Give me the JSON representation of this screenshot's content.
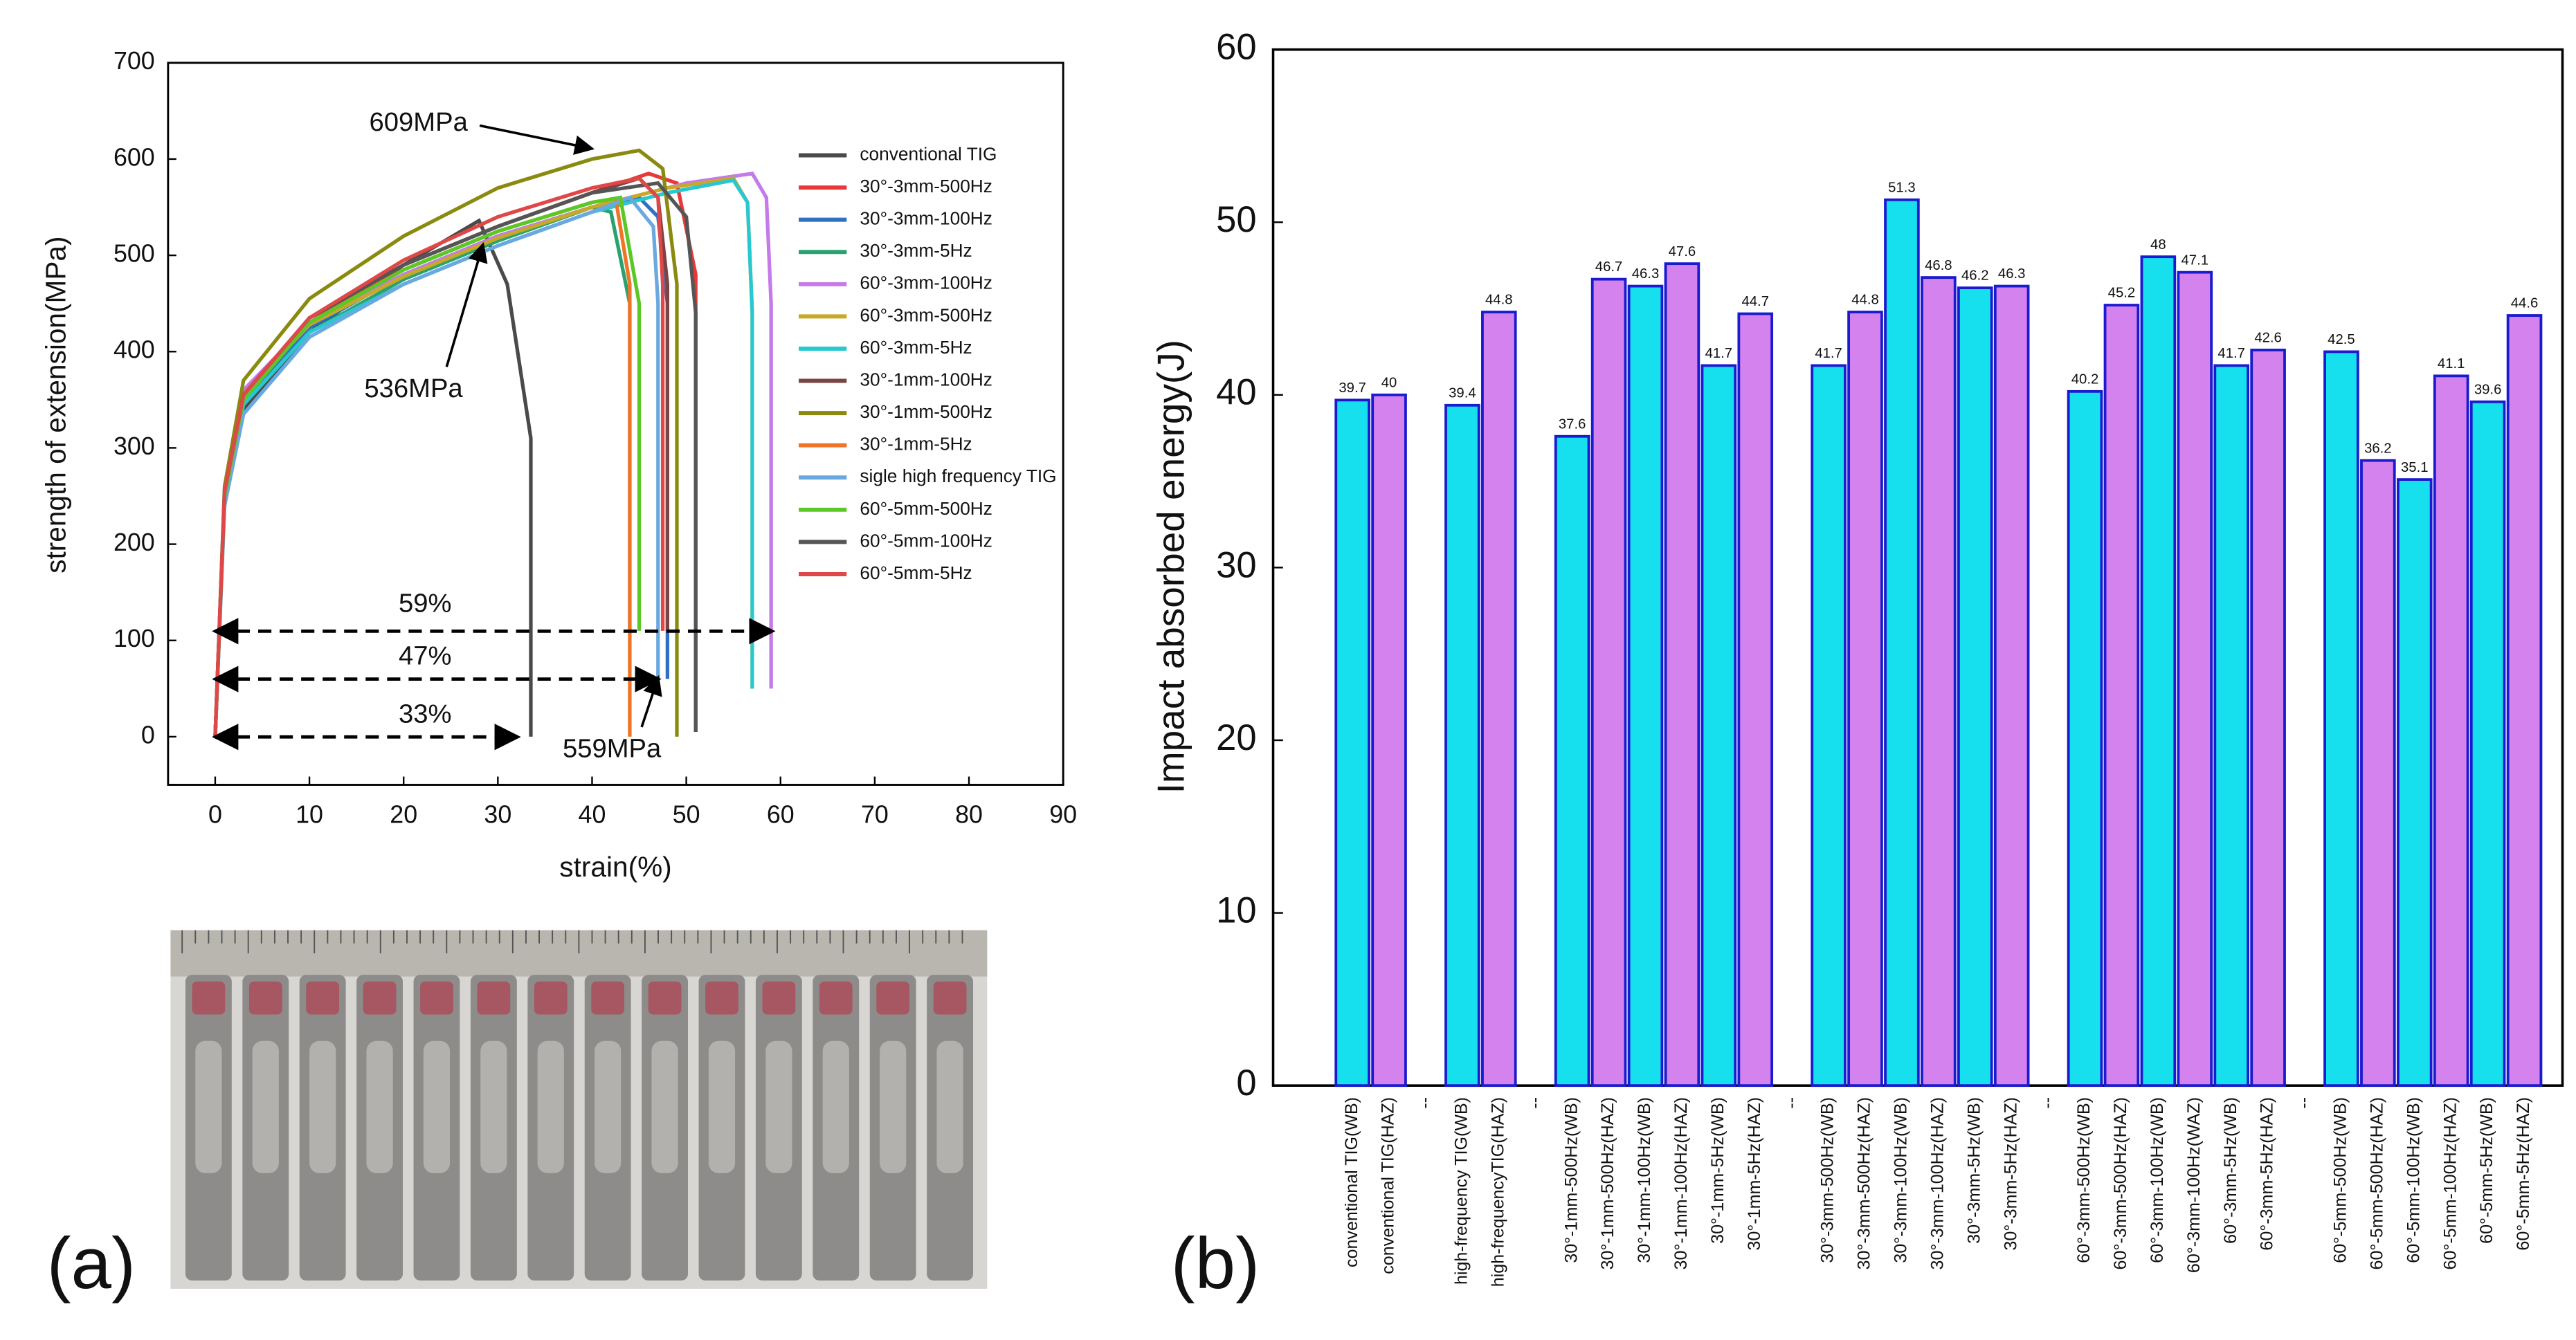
{
  "chart_data": [
    {
      "type": "line",
      "xlabel": "strain(%)",
      "ylabel": "strength of extension(MPa)",
      "xlim": [
        -5,
        90
      ],
      "xticks": [
        0,
        10,
        20,
        30,
        40,
        50,
        60,
        70,
        80,
        90
      ],
      "ylim": [
        -50,
        700
      ],
      "yticks": [
        0,
        100,
        200,
        300,
        400,
        500,
        600,
        700
      ],
      "annotations": [
        "609MPa",
        "536MPa",
        "59%",
        "47%",
        "33%",
        "559MPa"
      ],
      "series": [
        {
          "name": "conventional TIG",
          "color": "#4a4a4a",
          "x": [
            0,
            1,
            3,
            10,
            20,
            28,
            31,
            33.5,
            33.5
          ],
          "values": [
            0,
            250,
            340,
            420,
            490,
            536,
            470,
            310,
            0
          ]
        },
        {
          "name": "30°-3mm-500Hz",
          "color": "#e83838",
          "x": [
            0,
            1,
            3,
            10,
            20,
            30,
            40,
            46,
            49,
            51,
            51
          ],
          "values": [
            0,
            250,
            350,
            430,
            490,
            530,
            565,
            585,
            575,
            480,
            5
          ]
        },
        {
          "name": "30°-3mm-100Hz",
          "color": "#2f6fc4",
          "x": [
            0,
            1,
            3,
            10,
            20,
            30,
            40,
            45,
            47,
            48,
            48
          ],
          "values": [
            0,
            250,
            345,
            425,
            480,
            520,
            550,
            560,
            540,
            450,
            60
          ]
        },
        {
          "name": "30°-3mm-5Hz",
          "color": "#2aa270",
          "x": [
            0,
            1,
            3,
            10,
            20,
            30,
            40,
            42,
            44,
            44
          ],
          "values": [
            0,
            250,
            345,
            420,
            475,
            515,
            550,
            545,
            450,
            110
          ]
        },
        {
          "name": "60°-3mm-100Hz",
          "color": "#c47ae8",
          "x": [
            0,
            1,
            3,
            10,
            20,
            30,
            40,
            50,
            57,
            58.5,
            59,
            59
          ],
          "values": [
            0,
            260,
            360,
            430,
            480,
            520,
            550,
            575,
            585,
            560,
            450,
            50
          ]
        },
        {
          "name": "60°-3mm-500Hz",
          "color": "#c8a828",
          "x": [
            0,
            1,
            3,
            10,
            20,
            30,
            40,
            48,
            55,
            56.5,
            57,
            57
          ],
          "values": [
            0,
            255,
            355,
            428,
            478,
            518,
            550,
            570,
            580,
            555,
            440,
            50
          ]
        },
        {
          "name": "60°-3mm-5Hz",
          "color": "#28c8d0",
          "x": [
            0,
            1,
            3,
            10,
            20,
            30,
            40,
            48,
            55,
            56.5,
            57,
            57
          ],
          "values": [
            0,
            250,
            345,
            420,
            470,
            510,
            545,
            565,
            578,
            555,
            440,
            50
          ]
        },
        {
          "name": "30°-1mm-100Hz",
          "color": "#7a4444",
          "x": [
            0,
            1,
            3,
            10,
            20,
            30,
            40,
            45,
            47,
            48,
            48
          ],
          "values": [
            0,
            255,
            355,
            435,
            490,
            530,
            565,
            580,
            560,
            470,
            110
          ]
        },
        {
          "name": "30°-1mm-500Hz",
          "color": "#8a8a10",
          "x": [
            0,
            1,
            3,
            10,
            20,
            30,
            40,
            45,
            47.5,
            49,
            49
          ],
          "values": [
            0,
            260,
            370,
            455,
            520,
            570,
            600,
            609,
            590,
            470,
            0
          ]
        },
        {
          "name": "30°-1mm-5Hz",
          "color": "#f07428",
          "x": [
            0,
            1,
            3,
            10,
            20,
            30,
            40,
            42.5,
            44,
            44
          ],
          "values": [
            0,
            250,
            350,
            430,
            485,
            525,
            555,
            559,
            470,
            0
          ]
        },
        {
          "name": "sigle high frequency TIG",
          "color": "#6aa8e0",
          "x": [
            0,
            1,
            3,
            10,
            20,
            30,
            40,
            44,
            46.5,
            47,
            47
          ],
          "values": [
            0,
            240,
            335,
            415,
            470,
            510,
            545,
            560,
            530,
            450,
            60
          ]
        },
        {
          "name": "60°-5mm-500Hz",
          "color": "#5cc828",
          "x": [
            0,
            1,
            3,
            10,
            20,
            30,
            40,
            43,
            45,
            45
          ],
          "values": [
            0,
            250,
            350,
            430,
            485,
            525,
            555,
            560,
            450,
            110
          ]
        },
        {
          "name": "60°-5mm-100Hz",
          "color": "#555555",
          "x": [
            0,
            1,
            3,
            10,
            20,
            30,
            40,
            47,
            50,
            51,
            51
          ],
          "values": [
            0,
            255,
            355,
            435,
            490,
            530,
            565,
            575,
            540,
            440,
            5
          ]
        },
        {
          "name": "60°-5mm-5Hz",
          "color": "#e04848",
          "x": [
            0,
            1,
            3,
            10,
            20,
            30,
            40,
            45,
            47,
            47.5,
            47.5
          ],
          "values": [
            0,
            255,
            355,
            435,
            495,
            540,
            570,
            580,
            560,
            470,
            110
          ]
        }
      ]
    },
    {
      "type": "bar",
      "ylabel": "Impact absorbed energy(J)",
      "ylim": [
        0,
        60
      ],
      "yticks": [
        0,
        10,
        20,
        30,
        40,
        50,
        60
      ],
      "categories": [
        "conventional TIG(WB)",
        "conventional TIG(HAZ)",
        "--",
        "high-frequency TIG(WB)",
        "high-frequencyTIG(HAZ)",
        "--",
        "30°-1mm-500Hz(WB)",
        "30°-1mm-500Hz(HAZ)",
        "30°-1mm-100Hz(WB)",
        "30°-1mm-100Hz(HAZ)",
        "30°-1mm-5Hz(WB)",
        "30°-1mm-5Hz(HAZ)",
        "--",
        "30°-3mm-500Hz(WB)",
        "30°-3mm-500Hz(HAZ)",
        "30°-3mm-100Hz(WB)",
        "30°-3mm-100Hz(HAZ)",
        "30°-3mm-5Hz(WB)",
        "30°-3mm-5Hz(HAZ)",
        "--",
        "60°-3mm-500Hz(WB)",
        "60°-3mm-500Hz(HAZ)",
        "60°-3mm-100Hz(WB)",
        "60°-3mm-100Hz(WAZ)",
        "60°-3mm-5Hz(WB)",
        "60°-3mm-5Hz(HAZ)",
        "--",
        "60°-5mm-500Hz(WB)",
        "60°-5mm-500Hz(HAZ)",
        "60°-5mm-100Hz(WB)",
        "60°-5mm-100Hz(HAZ)",
        "60°-5mm-5Hz(WB)",
        "60°-5mm-5Hz(HAZ)"
      ],
      "values": [
        39.7,
        40,
        null,
        39.4,
        44.8,
        null,
        37.6,
        46.7,
        46.3,
        47.6,
        41.7,
        44.7,
        null,
        41.7,
        44.8,
        51.3,
        46.8,
        46.2,
        46.3,
        null,
        40.2,
        45.2,
        48,
        47.1,
        41.7,
        42.6,
        null,
        42.5,
        36.2,
        35.1,
        41.1,
        39.6,
        44.6
      ],
      "colors": [
        "#16e0ee",
        "#d483ee",
        null,
        "#16e0ee",
        "#d483ee",
        null,
        "#16e0ee",
        "#d483ee",
        "#16e0ee",
        "#d483ee",
        "#16e0ee",
        "#d483ee",
        null,
        "#16e0ee",
        "#d483ee",
        "#16e0ee",
        "#d483ee",
        "#16e0ee",
        "#d483ee",
        null,
        "#16e0ee",
        "#d483ee",
        "#16e0ee",
        "#d483ee",
        "#16e0ee",
        "#d483ee",
        null,
        "#16e0ee",
        "#d483ee",
        "#16e0ee",
        "#d483ee",
        "#16e0ee",
        "#d483ee"
      ]
    }
  ],
  "panels": [
    "(a)",
    "(b)"
  ]
}
